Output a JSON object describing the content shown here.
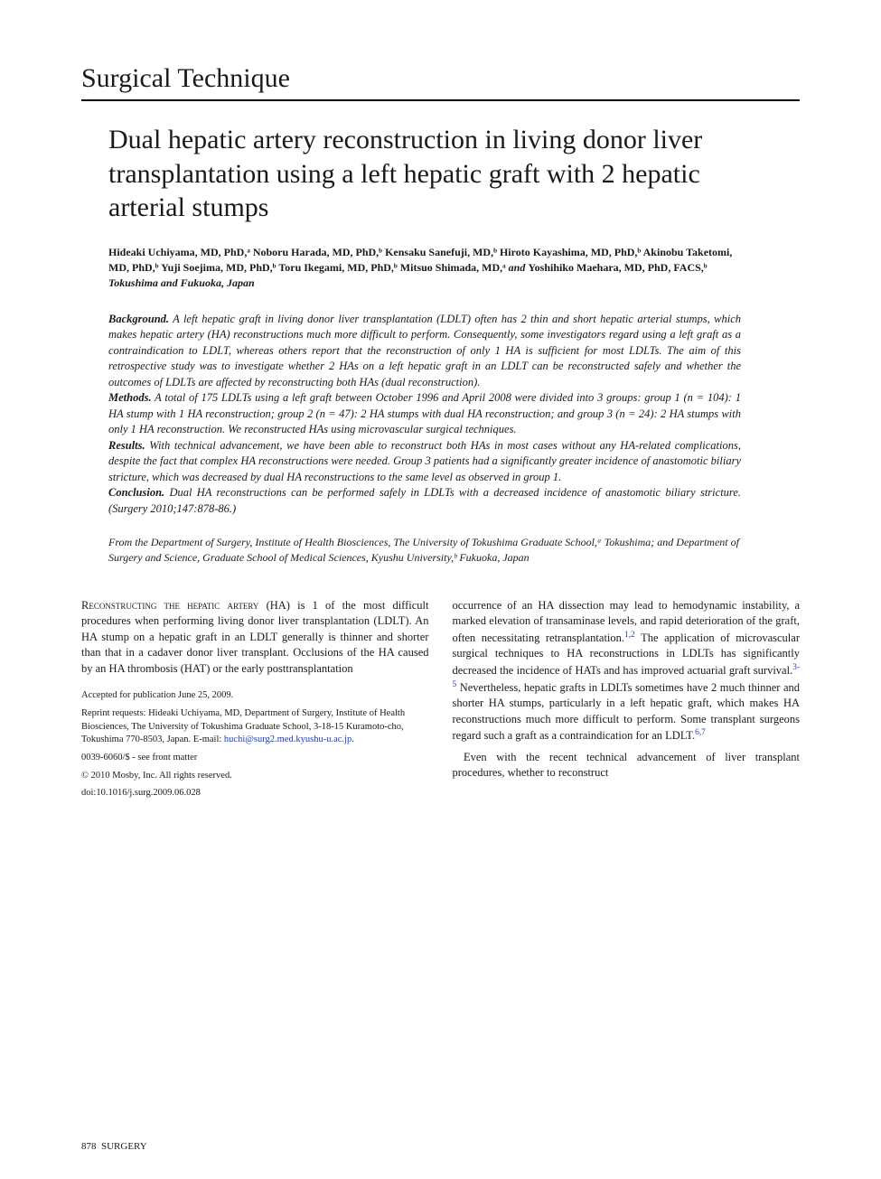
{
  "section_heading": "Surgical Technique",
  "title": "Dual hepatic artery reconstruction in living donor liver transplantation using a left hepatic graft with 2 hepatic arterial stumps",
  "authors": {
    "list": "Hideaki Uchiyama, MD, PhD,ᵃ Noboru Harada, MD, PhD,ᵇ Kensaku Sanefuji, MD,ᵇ Hiroto Kayashima, MD, PhD,ᵇ Akinobu Taketomi, MD, PhD,ᵇ Yuji Soejima, MD, PhD,ᵇ Toru Ikegami, MD, PhD,ᵇ Mitsuo Shimada, MD,ᵃ ",
    "and": "and ",
    "last": "Yoshihiko Maehara, MD, PhD, FACS,ᵇ ",
    "location": "Tokushima and Fukuoka, Japan"
  },
  "abstract": {
    "background_label": "Background.",
    "background_text": " A left hepatic graft in living donor liver transplantation (LDLT) often has 2 thin and short hepatic arterial stumps, which makes hepatic artery (HA) reconstructions much more difficult to perform. Consequently, some investigators regard using a left graft as a contraindication to LDLT, whereas others report that the reconstruction of only 1 HA is sufficient for most LDLTs. The aim of this retrospective study was to investigate whether 2 HAs on a left hepatic graft in an LDLT can be reconstructed safely and whether the outcomes of LDLTs are affected by reconstructing both HAs (dual reconstruction).",
    "methods_label": "Methods.",
    "methods_text": " A total of 175 LDLTs using a left graft between October 1996 and April 2008 were divided into 3 groups: group 1 (n = 104): 1 HA stump with 1 HA reconstruction; group 2 (n = 47): 2 HA stumps with dual HA reconstruction; and group 3 (n = 24): 2 HA stumps with only 1 HA reconstruction. We reconstructed HAs using microvascular surgical techniques.",
    "results_label": "Results.",
    "results_text": " With technical advancement, we have been able to reconstruct both HAs in most cases without any HA-related complications, despite the fact that complex HA reconstructions were needed. Group 3 patients had a significantly greater incidence of anastomotic biliary stricture, which was decreased by dual HA reconstructions to the same level as observed in group 1.",
    "conclusion_label": "Conclusion.",
    "conclusion_text": " Dual HA reconstructions can be performed safely in LDLTs with a decreased incidence of anastomotic biliary stricture. (Surgery 2010;147:878-86.)"
  },
  "affiliations": "From the Department of Surgery, Institute of Health Biosciences, The University of Tokushima Graduate School,ᵃ Tokushima; and Department of Surgery and Science, Graduate School of Medical Sciences, Kyushu University,ᵇ Fukuoka, Japan",
  "body": {
    "col1_p1_lead": "Reconstructing the hepatic artery",
    "col1_p1_rest": " (HA) is 1 of the most difficult procedures when performing living donor liver transplantation (LDLT). An HA stump on a hepatic graft in an LDLT generally is thinner and shorter than that in a cadaver donor liver transplant. Occlusions of the HA caused by an HA thrombosis (HAT) or the early posttransplantation",
    "col2_p1": "occurrence of an HA dissection may lead to hemodynamic instability, a marked elevation of transaminase levels, and rapid deterioration of the graft, often necessitating retransplantation.",
    "col2_ref1": "1,2",
    "col2_p1b": " The application of microvascular surgical techniques to HA reconstructions in LDLTs has significantly decreased the incidence of HATs and has improved actuarial graft survival.",
    "col2_ref2": "3-5",
    "col2_p1c": " Nevertheless, hepatic grafts in LDLTs sometimes have 2 much thinner and shorter HA stumps, particularly in a left hepatic graft, which makes HA reconstructions much more difficult to perform. Some transplant surgeons regard such a graft as a contraindication for an LDLT.",
    "col2_ref3": "6,7",
    "col2_p2": "Even with the recent technical advancement of liver transplant procedures, whether to reconstruct"
  },
  "footnotes": {
    "accepted": "Accepted for publication June 25, 2009.",
    "reprint": "Reprint requests: Hideaki Uchiyama, MD, Department of Surgery, Institute of Health Biosciences, The University of Tokushima Graduate School, 3-18-15 Kuramoto-cho, Tokushima 770-8503, Japan. E-mail: ",
    "email": "huchi@surg2.med.kyushu-u.ac.jp",
    "email_period": ".",
    "issn": "0039-6060/$ - see front matter",
    "copyright": "© 2010 Mosby, Inc. All rights reserved.",
    "doi": "doi:10.1016/j.surg.2009.06.028"
  },
  "footer": {
    "page": "878",
    "journal": "SURGERY"
  },
  "colors": {
    "text": "#1a1a1a",
    "link": "#1a3fbf",
    "background": "#ffffff",
    "rule": "#000000"
  },
  "typography": {
    "body_fontsize_pt": 12.5,
    "title_fontsize_pt": 30,
    "footnote_fontsize_pt": 10.5,
    "font_family": "Baskerville/Georgia serif"
  }
}
